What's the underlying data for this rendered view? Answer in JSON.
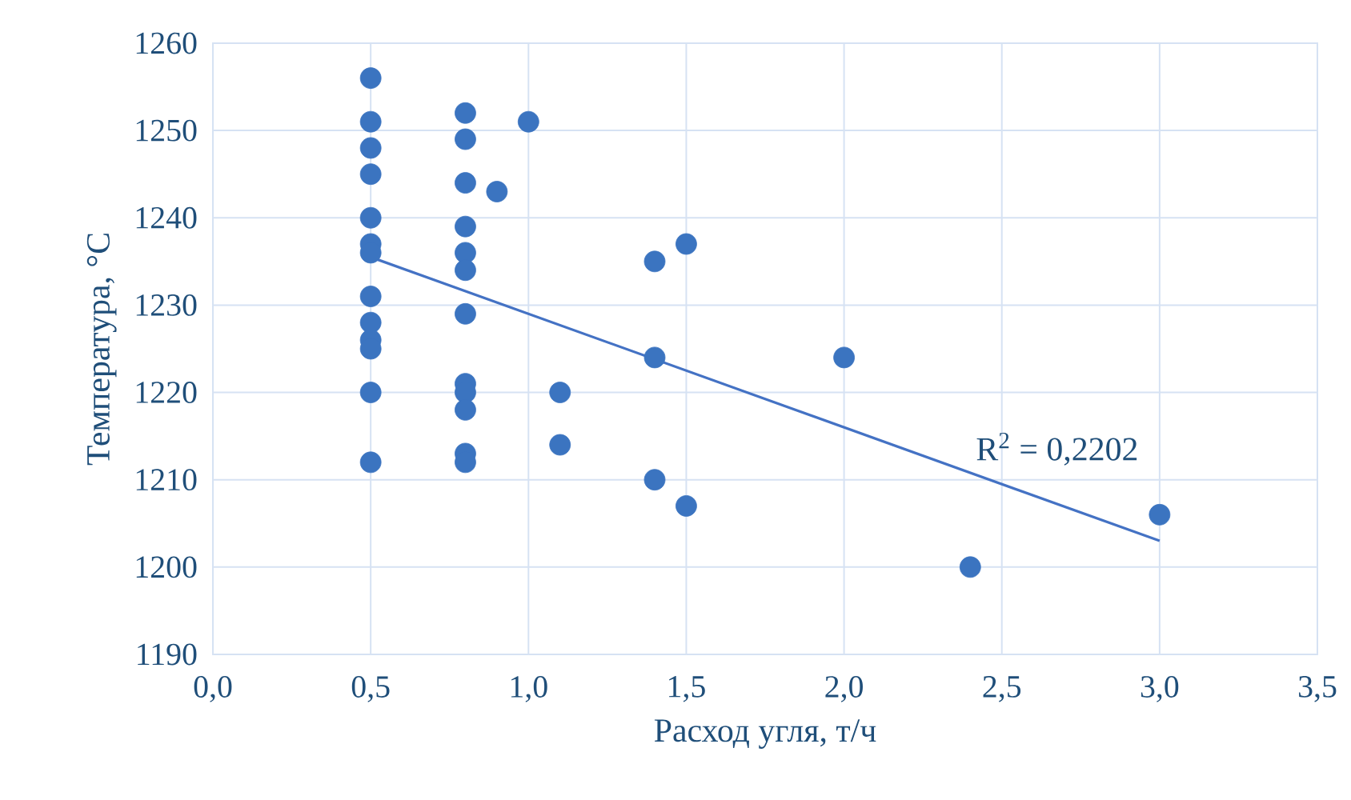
{
  "chart_data": {
    "type": "scatter",
    "xlabel": "Расход угля, т/ч",
    "ylabel": "Температура, °С",
    "x": [
      0.5,
      0.5,
      0.5,
      0.5,
      0.5,
      0.5,
      0.5,
      0.5,
      0.5,
      0.5,
      0.5,
      0.5,
      0.5,
      0.8,
      0.8,
      0.8,
      0.8,
      0.8,
      0.8,
      0.8,
      0.8,
      0.8,
      0.8,
      0.8,
      0.8,
      0.9,
      1.0,
      1.1,
      1.1,
      1.4,
      1.4,
      1.4,
      1.5,
      1.5,
      2.0,
      2.4,
      3.0
    ],
    "series": [
      {
        "color": "#3b74c0",
        "marker": "circle",
        "values": [
          1256,
          1251,
          1248,
          1245,
          1240,
          1237,
          1236,
          1231,
          1228,
          1226,
          1225,
          1220,
          1212,
          1252,
          1249,
          1244,
          1239,
          1236,
          1234,
          1229,
          1221,
          1220,
          1218,
          1213,
          1212,
          1243,
          1251,
          1220,
          1214,
          1235,
          1224,
          1210,
          1237,
          1207,
          1224,
          1200,
          1206
        ]
      },
      {
        "type": "line",
        "color": "#4472c4",
        "marker": "none",
        "line_style": "solid",
        "x": [
          0.5,
          3.0
        ],
        "values": [
          1235.5,
          1203
        ]
      }
    ],
    "annotations": [
      "R$^{2}$ = 0,2202"
    ],
    "xlim": [
      0,
      3.5
    ],
    "ylim": [
      1190,
      1260
    ],
    "xticks": [
      {
        "value": 0,
        "label": "0,0"
      },
      {
        "value": 0.5,
        "label": "0,5"
      },
      {
        "value": 1,
        "label": "1,0"
      },
      {
        "value": 1.5,
        "label": "1,5"
      },
      {
        "value": 2,
        "label": "2,0"
      },
      {
        "value": 2.5,
        "label": "2,5"
      },
      {
        "value": 3,
        "label": "3,0"
      },
      {
        "value": 3.5,
        "label": "3,5"
      }
    ],
    "yticks": [
      1190,
      1200,
      1210,
      1220,
      1230,
      1240,
      1250,
      1260
    ],
    "grid": true
  }
}
